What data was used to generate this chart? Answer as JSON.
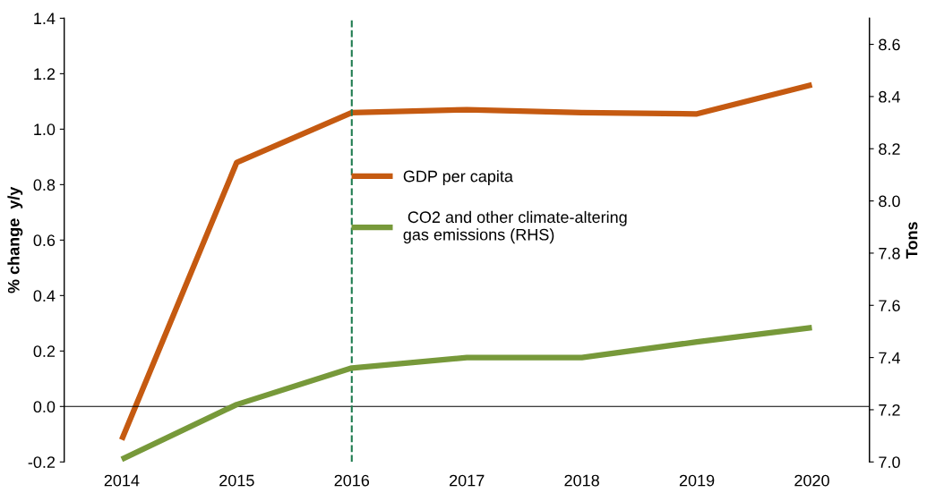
{
  "chart_data": {
    "type": "line",
    "ylabel": "% change  y/y",
    "y2label": "Tons",
    "categories": [
      "2014",
      "2015",
      "2016",
      "2017",
      "2018",
      "2019",
      "2020"
    ],
    "series": [
      {
        "name": "GDP per capita",
        "color": "#c55a11",
        "values": [
          -0.12,
          0.88,
          1.06,
          1.07,
          1.06,
          1.055,
          1.16
        ]
      },
      {
        "name": " CO2 and other climate-altering\ngas emissions (RHS)",
        "color": "#77993a",
        "axis": "y2",
        "values": [
          7.01,
          7.22,
          7.36,
          7.4,
          7.4,
          7.46,
          7.515
        ]
      }
    ],
    "ylim": [
      -0.2,
      1.4
    ],
    "yticks": [
      {
        "value": -0.2,
        "label": "-0.2"
      },
      {
        "value": 0.0,
        "label": "0.0"
      },
      {
        "value": 0.2,
        "label": "0.2"
      },
      {
        "value": 0.4,
        "label": "0.4"
      },
      {
        "value": 0.6,
        "label": "0.6"
      },
      {
        "value": 0.8,
        "label": "0.8"
      },
      {
        "value": 1.0,
        "label": "1.0"
      },
      {
        "value": 1.2,
        "label": "1.2"
      },
      {
        "value": 1.4,
        "label": "1.4"
      }
    ],
    "y2lim": [
      7.0,
      8.7
    ],
    "y2ticks": [
      {
        "value": 7.0,
        "label": "7.0"
      },
      {
        "value": 7.2,
        "label": "7.2"
      },
      {
        "value": 7.4,
        "label": "7.4"
      },
      {
        "value": 7.6,
        "label": "7.6"
      },
      {
        "value": 7.8,
        "label": "7.8"
      },
      {
        "value": 8.0,
        "label": "8.0"
      },
      {
        "value": 8.2,
        "label": "8.2"
      },
      {
        "value": 8.4,
        "label": "8.4"
      },
      {
        "value": 8.6,
        "label": "8.6"
      }
    ],
    "ref_lines": [
      {
        "axis": "x",
        "value": "2016",
        "color": "#1e7b4f",
        "line_style": "dashed"
      }
    ],
    "legend": "center",
    "grid": false
  }
}
